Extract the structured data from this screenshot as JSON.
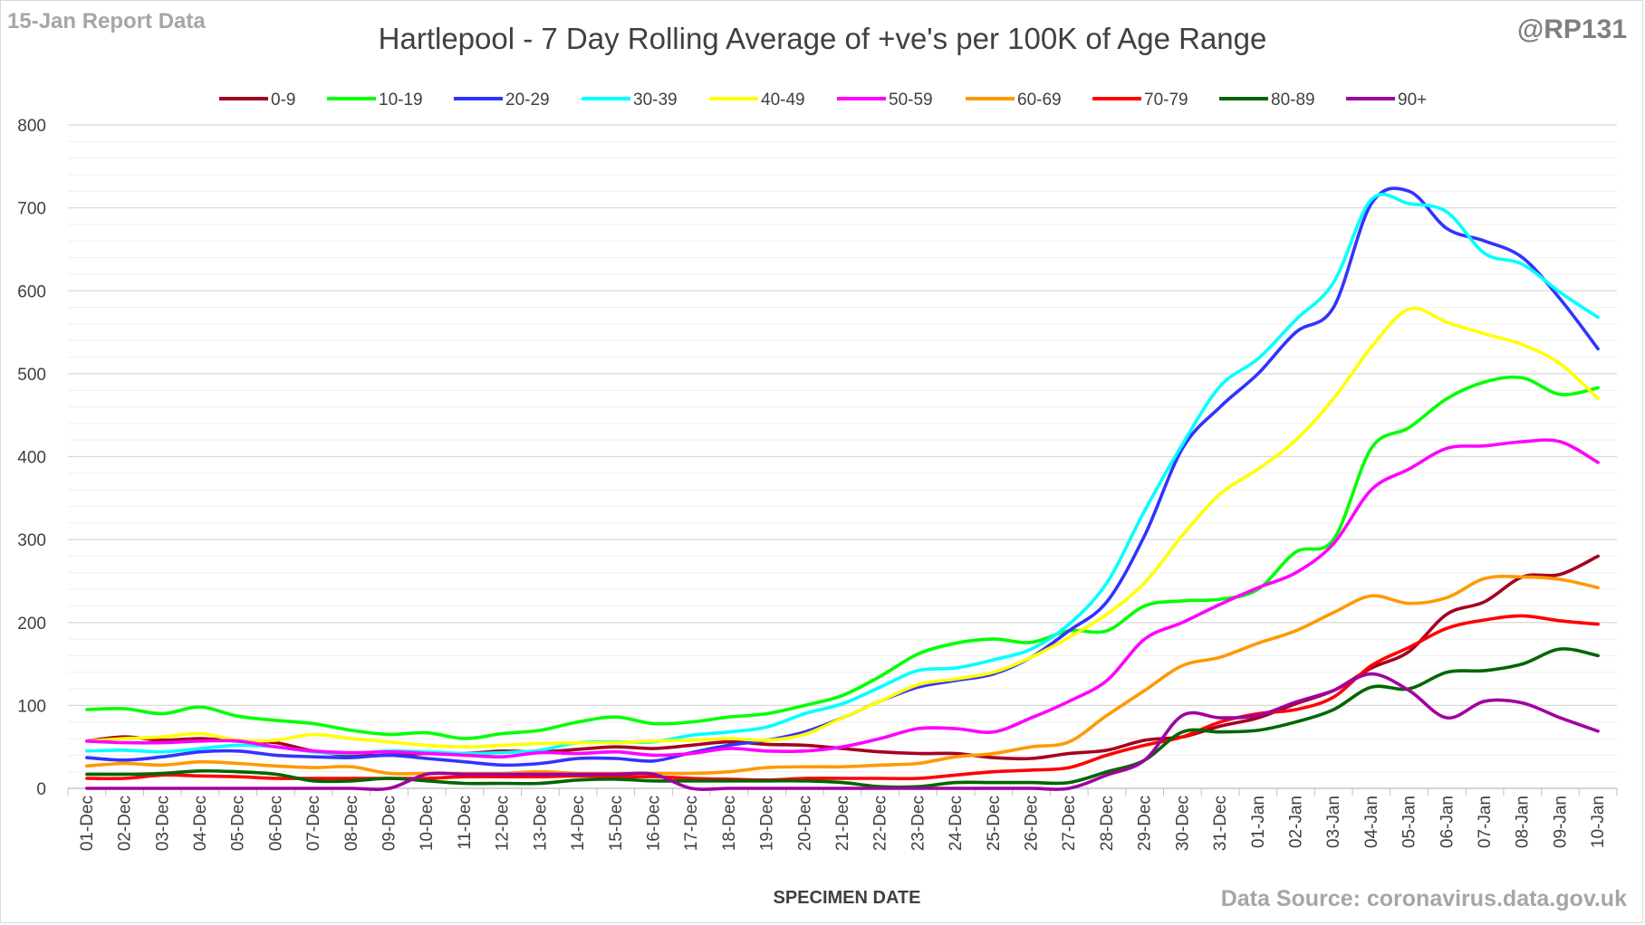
{
  "header": {
    "report_date": "15-Jan Report Data",
    "handle": "@RP131",
    "source": "Data Source: coronavirus.data.gov.uk"
  },
  "chart_data": {
    "type": "line",
    "title": "Hartlepool - 7 Day Rolling Average of +ve's per 100K of Age Range",
    "xlabel": "SPECIMEN DATE",
    "ylabel": "",
    "ylim": [
      0,
      800
    ],
    "yticks": [
      0,
      100,
      200,
      300,
      400,
      500,
      600,
      700,
      800
    ],
    "grid": true,
    "legend_position": "top",
    "categories": [
      "01-Dec",
      "02-Dec",
      "03-Dec",
      "04-Dec",
      "05-Dec",
      "06-Dec",
      "07-Dec",
      "08-Dec",
      "09-Dec",
      "10-Dec",
      "11-Dec",
      "12-Dec",
      "13-Dec",
      "14-Dec",
      "15-Dec",
      "16-Dec",
      "17-Dec",
      "18-Dec",
      "19-Dec",
      "20-Dec",
      "21-Dec",
      "22-Dec",
      "23-Dec",
      "24-Dec",
      "25-Dec",
      "26-Dec",
      "27-Dec",
      "28-Dec",
      "29-Dec",
      "30-Dec",
      "31-Dec",
      "01-Jan",
      "02-Jan",
      "03-Jan",
      "04-Jan",
      "05-Jan",
      "06-Jan",
      "07-Jan",
      "08-Jan",
      "09-Jan",
      "10-Jan"
    ],
    "series": [
      {
        "name": "0-9",
        "color": "#a50021",
        "values": [
          57,
          62,
          58,
          60,
          57,
          55,
          45,
          40,
          40,
          42,
          42,
          45,
          44,
          47,
          50,
          48,
          52,
          56,
          53,
          52,
          48,
          44,
          42,
          42,
          37,
          36,
          42,
          46,
          58,
          62,
          75,
          85,
          102,
          118,
          145,
          165,
          210,
          225,
          255,
          258,
          280
        ]
      },
      {
        "name": "10-19",
        "color": "#00ff00",
        "values": [
          95,
          96,
          90,
          98,
          87,
          82,
          78,
          70,
          65,
          67,
          60,
          66,
          70,
          80,
          86,
          78,
          80,
          86,
          90,
          100,
          112,
          135,
          162,
          175,
          180,
          176,
          190,
          190,
          220,
          226,
          228,
          240,
          285,
          300,
          410,
          435,
          470,
          490,
          495,
          475,
          483
        ]
      },
      {
        "name": "20-29",
        "color": "#3333ff",
        "values": [
          37,
          34,
          38,
          44,
          45,
          40,
          38,
          37,
          40,
          36,
          32,
          28,
          30,
          36,
          36,
          33,
          43,
          52,
          58,
          68,
          85,
          105,
          122,
          130,
          138,
          158,
          190,
          225,
          305,
          410,
          460,
          500,
          550,
          580,
          705,
          720,
          675,
          660,
          640,
          590,
          530
        ]
      },
      {
        "name": "30-39",
        "color": "#00ffff",
        "values": [
          45,
          46,
          44,
          48,
          52,
          50,
          44,
          42,
          45,
          44,
          42,
          43,
          46,
          55,
          56,
          56,
          64,
          68,
          74,
          90,
          102,
          122,
          142,
          145,
          155,
          168,
          198,
          248,
          335,
          415,
          485,
          518,
          565,
          610,
          710,
          705,
          695,
          645,
          632,
          598,
          568
        ]
      },
      {
        "name": "40-49",
        "color": "#ffff00",
        "values": [
          57,
          60,
          62,
          66,
          58,
          58,
          65,
          60,
          56,
          52,
          50,
          52,
          54,
          55,
          55,
          57,
          58,
          60,
          58,
          65,
          85,
          105,
          125,
          132,
          140,
          158,
          182,
          210,
          248,
          305,
          355,
          385,
          420,
          470,
          532,
          578,
          562,
          548,
          535,
          512,
          470
        ]
      },
      {
        "name": "50-59",
        "color": "#ff00ff",
        "values": [
          57,
          55,
          55,
          57,
          57,
          50,
          45,
          43,
          44,
          42,
          40,
          38,
          43,
          42,
          44,
          40,
          42,
          48,
          45,
          45,
          50,
          60,
          72,
          72,
          68,
          85,
          105,
          130,
          180,
          200,
          222,
          242,
          260,
          295,
          360,
          385,
          410,
          413,
          418,
          418,
          393
        ]
      },
      {
        "name": "60-69",
        "color": "#ff9900",
        "values": [
          27,
          30,
          28,
          32,
          30,
          27,
          25,
          26,
          18,
          18,
          18,
          18,
          20,
          18,
          18,
          18,
          18,
          20,
          25,
          26,
          26,
          28,
          30,
          38,
          42,
          50,
          56,
          88,
          118,
          148,
          158,
          175,
          190,
          212,
          232,
          223,
          230,
          253,
          255,
          252,
          242
        ]
      },
      {
        "name": "70-79",
        "color": "#ff0000",
        "values": [
          12,
          12,
          16,
          15,
          14,
          12,
          12,
          12,
          12,
          12,
          14,
          14,
          14,
          15,
          14,
          14,
          12,
          11,
          10,
          12,
          12,
          12,
          12,
          16,
          20,
          22,
          25,
          40,
          52,
          62,
          80,
          90,
          95,
          110,
          148,
          170,
          193,
          203,
          208,
          202,
          198
        ]
      },
      {
        "name": "80-89",
        "color": "#006600",
        "values": [
          17,
          17,
          18,
          21,
          20,
          17,
          9,
          9,
          12,
          9,
          6,
          6,
          6,
          10,
          11,
          9,
          9,
          9,
          9,
          9,
          7,
          2,
          2,
          7,
          7,
          7,
          7,
          20,
          34,
          68,
          68,
          70,
          80,
          95,
          122,
          120,
          140,
          142,
          150,
          168,
          160
        ]
      },
      {
        "name": "90+",
        "color": "#a000a0",
        "values": [
          0,
          0,
          0,
          0,
          0,
          0,
          0,
          0,
          0,
          17,
          17,
          17,
          17,
          17,
          17,
          17,
          0,
          0,
          0,
          0,
          0,
          0,
          0,
          0,
          0,
          0,
          0,
          16,
          34,
          88,
          85,
          88,
          104,
          118,
          138,
          118,
          85,
          105,
          103,
          85,
          69
        ]
      }
    ]
  }
}
